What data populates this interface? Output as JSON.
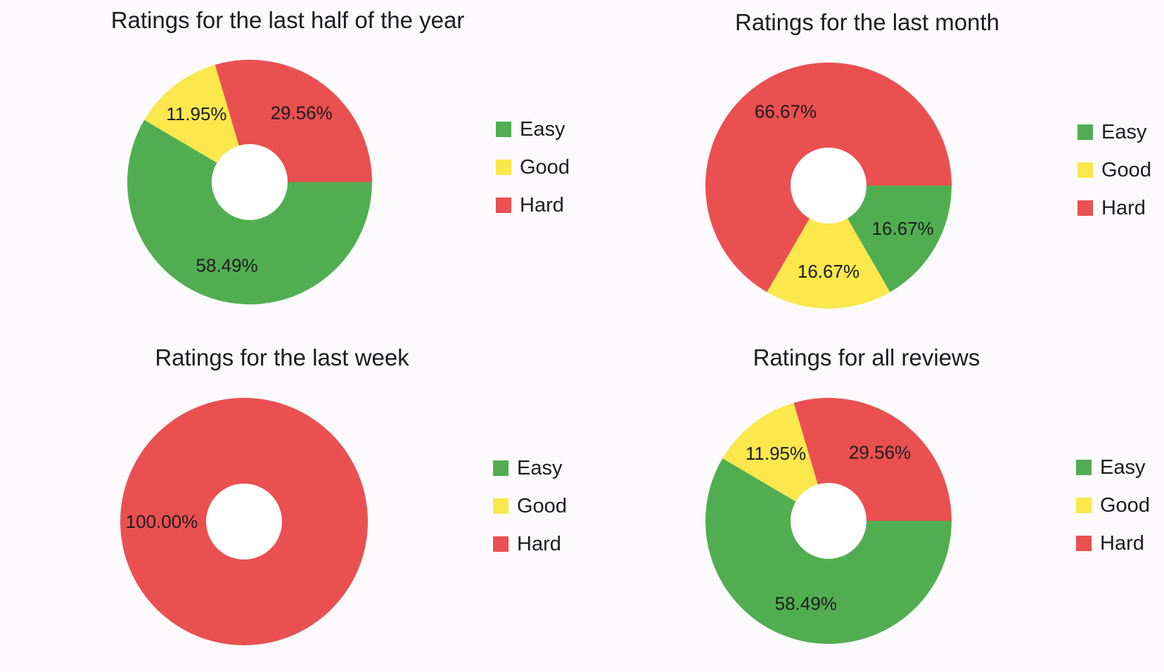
{
  "legend_items": [
    {
      "label": "Easy",
      "color": "#51ae50"
    },
    {
      "label": "Good",
      "color": "#fae84c"
    },
    {
      "label": "Hard",
      "color": "#ea5050"
    }
  ],
  "chart_data": [
    {
      "type": "pie",
      "title": "Ratings for the last half of the year",
      "categories": [
        "Easy",
        "Good",
        "Hard"
      ],
      "values": [
        58.49,
        11.95,
        29.56
      ],
      "labels": [
        "58.49%",
        "11.95%",
        "29.56%"
      ],
      "colors": [
        "#51ae50",
        "#fae84c",
        "#ea5050"
      ],
      "donut": true,
      "legend": "right"
    },
    {
      "type": "pie",
      "title": "Ratings for the last month",
      "categories": [
        "Easy",
        "Good",
        "Hard"
      ],
      "values": [
        16.67,
        16.67,
        66.67
      ],
      "labels": [
        "16.67%",
        "16.67%",
        "66.67%"
      ],
      "colors": [
        "#51ae50",
        "#fae84c",
        "#ea5050"
      ],
      "donut": true,
      "legend": "right"
    },
    {
      "type": "pie",
      "title": "Ratings for the last week",
      "categories": [
        "Easy",
        "Good",
        "Hard"
      ],
      "values": [
        0,
        0,
        100.0
      ],
      "labels": [
        "",
        "",
        "100.00%"
      ],
      "colors": [
        "#51ae50",
        "#fae84c",
        "#ea5050"
      ],
      "donut": true,
      "legend": "right"
    },
    {
      "type": "pie",
      "title": "Ratings for all reviews",
      "categories": [
        "Easy",
        "Good",
        "Hard"
      ],
      "values": [
        58.49,
        11.95,
        29.56
      ],
      "labels": [
        "58.49%",
        "11.95%",
        "29.56%"
      ],
      "colors": [
        "#51ae50",
        "#fae84c",
        "#ea5050"
      ],
      "donut": true,
      "legend": "right"
    }
  ]
}
